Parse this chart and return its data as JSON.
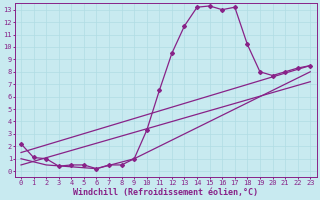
{
  "background_color": "#c8eaf0",
  "grid_color": "#b0dce4",
  "line_color": "#882288",
  "xlabel": "Windchill (Refroidissement éolien,°C)",
  "xlim": [
    -0.5,
    23.5
  ],
  "ylim": [
    -0.5,
    13.5
  ],
  "xticks": [
    0,
    1,
    2,
    3,
    4,
    5,
    6,
    7,
    8,
    9,
    10,
    11,
    12,
    13,
    14,
    15,
    16,
    17,
    18,
    19,
    20,
    21,
    22,
    23
  ],
  "yticks": [
    0,
    1,
    2,
    3,
    4,
    5,
    6,
    7,
    8,
    9,
    10,
    11,
    12,
    13
  ],
  "main_x": [
    0,
    1,
    2,
    3,
    4,
    5,
    6,
    7,
    8,
    9,
    10,
    11,
    12,
    13,
    14,
    15,
    16,
    17,
    18,
    19,
    20,
    21,
    22,
    23
  ],
  "main_y": [
    2.2,
    1.1,
    1.0,
    0.4,
    0.5,
    0.5,
    0.2,
    0.5,
    0.5,
    1.0,
    3.3,
    6.5,
    9.5,
    11.7,
    13.2,
    13.3,
    13.0,
    13.2,
    10.2,
    8.0,
    7.7,
    8.0,
    8.3,
    8.5
  ],
  "line1_x": [
    0,
    23
  ],
  "line1_y": [
    1.5,
    8.5
  ],
  "line2_x": [
    0,
    2,
    6,
    9,
    23
  ],
  "line2_y": [
    1.0,
    0.5,
    0.2,
    1.0,
    8.0
  ],
  "line3_x": [
    0,
    23
  ],
  "line3_y": [
    0.5,
    7.2
  ],
  "marker": "D",
  "markersize": 2.0,
  "linewidth": 0.9,
  "tick_fontsize": 5.0,
  "xlabel_fontsize": 6.0
}
